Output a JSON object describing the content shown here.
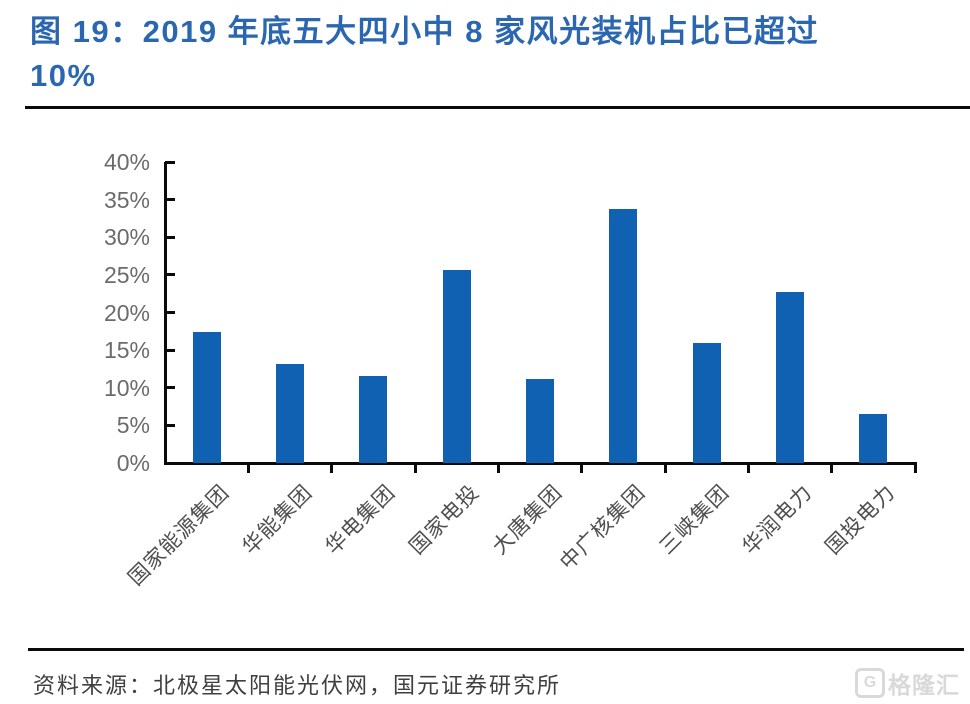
{
  "figure": {
    "title_line1": "图 19：2019 年底五大四小中 8 家风光装机占比已超过",
    "title_line2": "10%"
  },
  "chart_data": {
    "type": "bar",
    "title": "图 19：2019 年底五大四小中 8 家风光装机占比已超过 10%",
    "categories": [
      "国家能源集团",
      "华能集团",
      "华电集团",
      "国家电投",
      "大唐集团",
      "中广核集团",
      "三峡集团",
      "华润电力",
      "国投电力"
    ],
    "values": [
      17.4,
      13.2,
      11.5,
      25.7,
      11.1,
      33.8,
      16.0,
      22.7,
      6.5
    ],
    "xlabel": "",
    "ylabel": "",
    "ylim": [
      0,
      40
    ],
    "ytick_step": 5,
    "ytick_labels": [
      "0%",
      "5%",
      "10%",
      "15%",
      "20%",
      "25%",
      "30%",
      "35%",
      "40%"
    ],
    "grid": false,
    "legend_position": "none",
    "bar_color": "#1161b2"
  },
  "footer": {
    "source_text": "资料来源：北极星太阳能光伏网，国元证券研究所"
  },
  "watermark": {
    "icon": "G",
    "text": "格隆汇"
  },
  "colors": {
    "title": "#2b67b0",
    "bar": "#1161b2",
    "axis": "#0a0a0a",
    "ytick_label": "#6b6b6b",
    "xtick_label": "#4f4f4f",
    "footer_text": "#3f3f3f",
    "watermark": "#d9d9d9"
  }
}
